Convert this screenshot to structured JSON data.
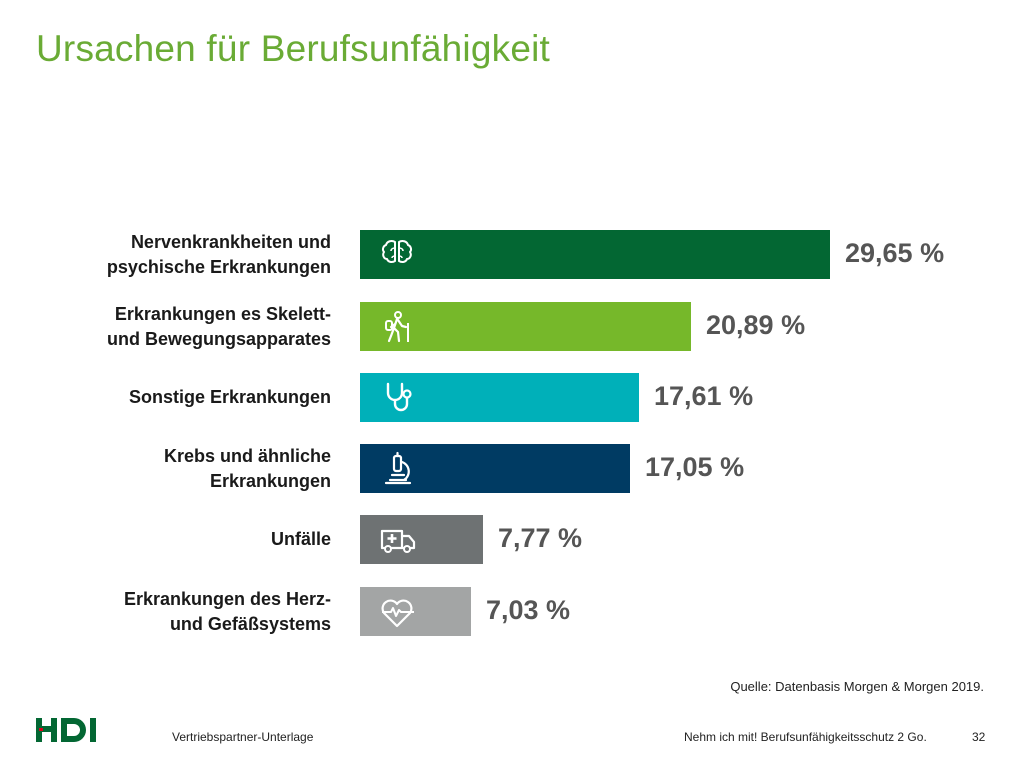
{
  "title": "Ursachen für Berufsunfähigkeit",
  "chart_data": {
    "type": "bar",
    "orientation": "horizontal",
    "categories": [
      [
        "Nervenkrankheiten und",
        "psychische Erkrankungen"
      ],
      [
        "Erkrankungen es Skelett-",
        "und Bewegungsapparates"
      ],
      [
        "Sonstige Erkrankungen"
      ],
      [
        "Krebs und ähnliche",
        "Erkrankungen"
      ],
      [
        "Unfälle"
      ],
      [
        "Erkrankungen des Herz-",
        "und Gefäßsystems"
      ]
    ],
    "values": [
      29.65,
      20.89,
      17.61,
      17.05,
      7.77,
      7.03
    ],
    "value_labels": [
      "29,65 %",
      "20,89 %",
      "17,61 %",
      "17,05 %",
      "7,77 %",
      "7,03 %"
    ],
    "colors": [
      "#036733",
      "#76b82a",
      "#00b0b9",
      "#003b63",
      "#6e7273",
      "#a3a5a5"
    ],
    "icons": [
      "brain-icon",
      "hiker-icon",
      "stethoscope-icon",
      "microscope-icon",
      "ambulance-icon",
      "heartbeat-icon"
    ],
    "units": "%"
  },
  "source": "Quelle: Datenbasis Morgen & Morgen 2019.",
  "footer": {
    "left": "Vertriebspartner-Unterlage",
    "right": "Nehm ich mit! Berufsunfähigkeitsschutz 2 Go.",
    "page": "32"
  },
  "logo": {
    "text": "HDI",
    "color": "#036733",
    "accent": "#d9001b"
  }
}
